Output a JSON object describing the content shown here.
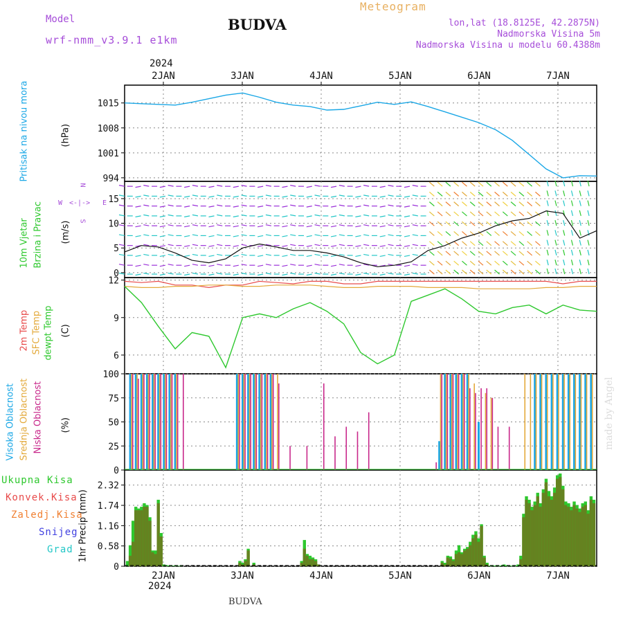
{
  "header": {
    "model_label": "Model",
    "model_name": "wrf-nmm_v3.9.1  e1km",
    "station": "BUDVA",
    "product": "Meteogram",
    "lonlat": "lon,lat (18.8125E, 42.2875N)",
    "elevation": "Nadmorska Visina 5m",
    "model_elevation": "Nadmorska Visina u modelu 60.4388m",
    "footer_station": "BUDVA",
    "credit": "made by Angel"
  },
  "colors": {
    "pressure": "#1aa7e6",
    "temp2m": "#e84a4a",
    "sfc_temp": "#e3a93a",
    "dewpt": "#2ec82e",
    "cloud_high": "#1aa7e6",
    "cloud_mid": "#e3a93a",
    "cloud_low": "#c8278a",
    "precip_total": "#2ec82e",
    "precip_conv": "#e84a4a",
    "precip_frz": "#f07f30",
    "snow": "#4040e0",
    "hail": "#23c7c7",
    "title_purple": "#a64dd9",
    "product_orange": "#e8b060"
  },
  "chart_data": [
    {
      "type": "line",
      "title": "Pritisak na nivou mora",
      "ylabel": "(hPa)",
      "x_top_labels": [
        "2JAN",
        "3JAN",
        "4JAN",
        "5JAN",
        "6JAN",
        "7JAN"
      ],
      "x_top_year": "2024",
      "yticks": [
        "1015",
        "1008",
        "1001",
        "994"
      ],
      "ylim": [
        993,
        1020
      ],
      "x": [
        0,
        6,
        12,
        18,
        24,
        30,
        36,
        42,
        48,
        54,
        60,
        66,
        72,
        78,
        84,
        90,
        96,
        102,
        108,
        114,
        120,
        126,
        132,
        138,
        144,
        150,
        156,
        162,
        168
      ],
      "series": [
        {
          "values": [
            1015.0,
            1014.8,
            1014.6,
            1014.4,
            1015.2,
            1016.2,
            1017.2,
            1017.8,
            1016.6,
            1015.2,
            1014.4,
            1014.0,
            1013.0,
            1013.2,
            1014.2,
            1015.2,
            1014.6,
            1015.3,
            1014.0,
            1012.5,
            1011.0,
            1009.5,
            1007.5,
            1004.5,
            1000.5,
            996.5,
            994.0,
            994.6,
            994.5
          ]
        }
      ]
    },
    {
      "type": "line",
      "title": "10m Vjetar Brzina i Pravac",
      "ylabel": "(m/s)",
      "compass": {
        "w": "W",
        "e": "E",
        "n": "N",
        "s": "S"
      },
      "yticks": [
        "15",
        "10",
        "5",
        "0"
      ],
      "ylim": [
        -1,
        18.5
      ],
      "x": [
        0,
        6,
        12,
        18,
        24,
        30,
        36,
        42,
        48,
        54,
        60,
        66,
        72,
        78,
        84,
        90,
        96,
        102,
        108,
        114,
        120,
        126,
        132,
        138,
        144,
        150,
        156,
        162,
        168
      ],
      "series": [
        {
          "values": [
            4.2,
            5.5,
            5.2,
            4.0,
            2.5,
            2.0,
            2.8,
            5.0,
            5.8,
            5.2,
            4.5,
            4.5,
            4.0,
            3.2,
            2.0,
            1.2,
            1.5,
            2.2,
            4.5,
            5.5,
            7.0,
            8.0,
            9.5,
            10.5,
            11.0,
            12.5,
            12.0,
            7.0,
            8.5
          ]
        }
      ]
    },
    {
      "type": "line",
      "title": "2m Temp / SFC Temp / dewpt Temp",
      "ylabel": "(C)",
      "yticks": [
        "12",
        "9",
        "6"
      ],
      "ylim": [
        4.5,
        12.2
      ],
      "x": [
        0,
        6,
        12,
        18,
        24,
        30,
        36,
        42,
        48,
        54,
        60,
        66,
        72,
        78,
        84,
        90,
        96,
        102,
        108,
        114,
        120,
        126,
        132,
        138,
        144,
        150,
        156,
        162,
        168
      ],
      "series": [
        {
          "name": "2m Temp",
          "values": [
            11.9,
            11.8,
            11.9,
            11.6,
            11.6,
            11.4,
            11.6,
            11.6,
            11.9,
            11.8,
            11.7,
            11.9,
            11.9,
            11.7,
            11.7,
            11.9,
            11.9,
            11.9,
            11.9,
            11.9,
            11.9,
            11.9,
            11.9,
            11.9,
            11.9,
            11.9,
            11.7,
            11.9,
            11.9
          ]
        },
        {
          "name": "SFC Temp",
          "values": [
            11.5,
            11.4,
            11.4,
            11.5,
            11.5,
            11.6,
            11.6,
            11.5,
            11.5,
            11.6,
            11.6,
            11.6,
            11.5,
            11.4,
            11.4,
            11.5,
            11.5,
            11.5,
            11.4,
            11.4,
            11.4,
            11.3,
            11.3,
            11.3,
            11.3,
            11.4,
            11.4,
            11.5,
            11.5
          ]
        },
        {
          "name": "dewpt Temp",
          "values": [
            11.5,
            10.2,
            8.3,
            6.5,
            7.8,
            7.5,
            5.0,
            9.0,
            9.3,
            9.0,
            9.7,
            10.2,
            9.5,
            8.5,
            6.2,
            5.3,
            6.0,
            10.3,
            10.8,
            11.3,
            10.5,
            9.5,
            9.3,
            9.8,
            10.0,
            9.3,
            10.0,
            9.6,
            9.5
          ]
        }
      ]
    },
    {
      "type": "bar",
      "title": "Visoka Oblacnost / Srednja Oblacnost / Niska Oblacnost",
      "ylabel": "(%)",
      "yticks": [
        "100",
        "75",
        "50",
        "25",
        "0"
      ],
      "ylim": [
        0,
        100
      ],
      "x": [
        2,
        4,
        6,
        8,
        10,
        12,
        14,
        16,
        18,
        20,
        40,
        42,
        44,
        46,
        48,
        50,
        52,
        54,
        58,
        64,
        70,
        74,
        78,
        82,
        86,
        110,
        112,
        114,
        116,
        118,
        120,
        122,
        124,
        126,
        128,
        130,
        132,
        136,
        140,
        142,
        144,
        146,
        148,
        150,
        152,
        154,
        156,
        158,
        160,
        162,
        164,
        166
      ],
      "series": [
        {
          "name": "Visoka Oblacnost",
          "values": [
            100,
            100,
            100,
            100,
            100,
            100,
            100,
            100,
            100,
            0,
            100,
            100,
            100,
            100,
            100,
            100,
            100,
            0,
            0,
            0,
            0,
            0,
            0,
            0,
            0,
            0,
            30,
            100,
            100,
            100,
            100,
            100,
            0,
            50,
            0,
            0,
            0,
            0,
            0,
            0,
            0,
            100,
            100,
            100,
            100,
            100,
            100,
            100,
            100,
            100,
            100,
            100
          ]
        },
        {
          "name": "Srednja Oblacnost",
          "values": [
            100,
            100,
            100,
            100,
            100,
            100,
            100,
            100,
            100,
            0,
            100,
            100,
            100,
            100,
            100,
            100,
            100,
            100,
            0,
            0,
            0,
            0,
            0,
            0,
            0,
            0,
            100,
            100,
            100,
            100,
            100,
            100,
            90,
            0,
            80,
            75,
            0,
            0,
            0,
            100,
            100,
            100,
            100,
            100,
            100,
            100,
            100,
            100,
            100,
            100,
            100,
            100
          ]
        },
        {
          "name": "Niska Oblacnost",
          "values": [
            100,
            95,
            100,
            100,
            100,
            100,
            100,
            100,
            100,
            100,
            100,
            100,
            100,
            100,
            100,
            100,
            100,
            90,
            25,
            25,
            90,
            35,
            45,
            40,
            60,
            8,
            100,
            100,
            100,
            100,
            100,
            85,
            80,
            85,
            85,
            75,
            45,
            45,
            0,
            0,
            0,
            0,
            0,
            0,
            0,
            0,
            0,
            0,
            0,
            0,
            0,
            0
          ]
        }
      ]
    },
    {
      "type": "bar",
      "title": "1hr Precip",
      "ylabel": "1hr Precip (mm)",
      "legend": [
        "Ukupna Kisa",
        "Konvek.Kisa",
        "Zaledj.Kisa",
        "Snijeg",
        "Grad"
      ],
      "x_bottom_labels": [
        "2JAN",
        "3JAN",
        "4JAN",
        "5JAN",
        "6JAN",
        "7JAN"
      ],
      "x_bottom_year": "2024",
      "yticks": [
        "2.32",
        "1.74",
        "1.16",
        "0.58",
        "0"
      ],
      "ylim": [
        0,
        2.75
      ],
      "x": [
        1,
        2,
        3,
        4,
        5,
        6,
        7,
        8,
        9,
        10,
        11,
        12,
        13,
        14,
        15,
        16,
        17,
        18,
        19,
        20,
        41,
        42,
        43,
        44,
        46,
        63,
        64,
        65,
        66,
        67,
        68,
        69,
        113,
        114,
        115,
        116,
        117,
        118,
        119,
        120,
        121,
        122,
        123,
        124,
        125,
        126,
        127,
        128,
        129,
        130,
        131,
        132,
        133,
        134,
        135,
        136,
        137,
        138,
        139,
        140,
        141,
        142,
        143,
        144,
        145,
        146,
        147,
        148,
        149,
        150,
        151,
        152,
        153,
        154,
        155,
        156,
        157,
        158,
        159,
        160,
        161,
        162,
        163,
        164,
        165,
        166,
        167
      ],
      "series": [
        {
          "name": "Ukupna Kisa",
          "values": [
            0.15,
            0.6,
            1.3,
            1.7,
            1.65,
            1.7,
            1.8,
            1.75,
            1.4,
            0.45,
            0.45,
            1.9,
            0.95,
            0.05,
            0.03,
            0.02,
            0.01,
            0.02,
            0.01,
            0.01,
            0.15,
            0.1,
            0.2,
            0.5,
            0.1,
            0.15,
            0.75,
            0.35,
            0.3,
            0.25,
            0.2,
            0.05,
            0.15,
            0.1,
            0.3,
            0.28,
            0.2,
            0.45,
            0.6,
            0.4,
            0.5,
            0.55,
            0.7,
            0.9,
            1.0,
            0.8,
            1.2,
            0.3,
            0.1,
            0.02,
            0.01,
            0.02,
            0.01,
            0.02,
            0.05,
            0.03,
            0.02,
            0.01,
            0.02,
            0.05,
            0.3,
            1.5,
            2.0,
            1.9,
            1.7,
            1.85,
            2.1,
            1.8,
            2.2,
            2.5,
            2.15,
            2.0,
            2.25,
            2.6,
            2.65,
            2.3,
            1.85,
            1.8,
            1.7,
            1.85,
            1.75,
            1.65,
            1.8,
            1.85,
            1.6,
            2.0,
            1.9
          ]
        },
        {
          "name": "Konvek.Kisa",
          "values": [
            0,
            0.3,
            0.7,
            1.6,
            1.6,
            1.6,
            1.7,
            1.7,
            1.3,
            0.4,
            0.35,
            1.8,
            0.85,
            0,
            0,
            0,
            0,
            0,
            0,
            0,
            0.1,
            0.05,
            0.15,
            0.45,
            0.05,
            0.1,
            0.5,
            0.3,
            0.2,
            0.2,
            0.15,
            0.05,
            0.1,
            0.05,
            0.25,
            0.22,
            0.15,
            0.35,
            0.4,
            0.35,
            0.45,
            0.5,
            0.6,
            0.8,
            0.9,
            0.7,
            1.15,
            0.25,
            0.05,
            0,
            0,
            0,
            0,
            0,
            0,
            0,
            0,
            0,
            0,
            0,
            0.2,
            1.4,
            1.9,
            1.8,
            1.6,
            1.75,
            2.0,
            1.7,
            2.1,
            2.4,
            2.0,
            1.9,
            2.1,
            2.5,
            2.55,
            2.2,
            1.75,
            1.7,
            1.6,
            1.75,
            1.65,
            1.55,
            1.7,
            1.75,
            1.5,
            1.9,
            1.8
          ]
        },
        {
          "name": "Zaledj.Kisa",
          "values": [
            0,
            0,
            0,
            0,
            0,
            0,
            0,
            0,
            0,
            0,
            0,
            0,
            0,
            0,
            0,
            0,
            0,
            0,
            0,
            0,
            0,
            0,
            0,
            0,
            0,
            0,
            0,
            0,
            0,
            0,
            0,
            0,
            0,
            0,
            0,
            0,
            0,
            0,
            0,
            0,
            0,
            0,
            0,
            0,
            0,
            0,
            0,
            0,
            0,
            0,
            0,
            0,
            0,
            0,
            0,
            0,
            0,
            0,
            0,
            0,
            0,
            0,
            0,
            0,
            0,
            0,
            0,
            0,
            0,
            0,
            0,
            0,
            0,
            0,
            0,
            0,
            0,
            0,
            0,
            0,
            0,
            0,
            0,
            0,
            0,
            0,
            0
          ]
        }
      ]
    }
  ]
}
